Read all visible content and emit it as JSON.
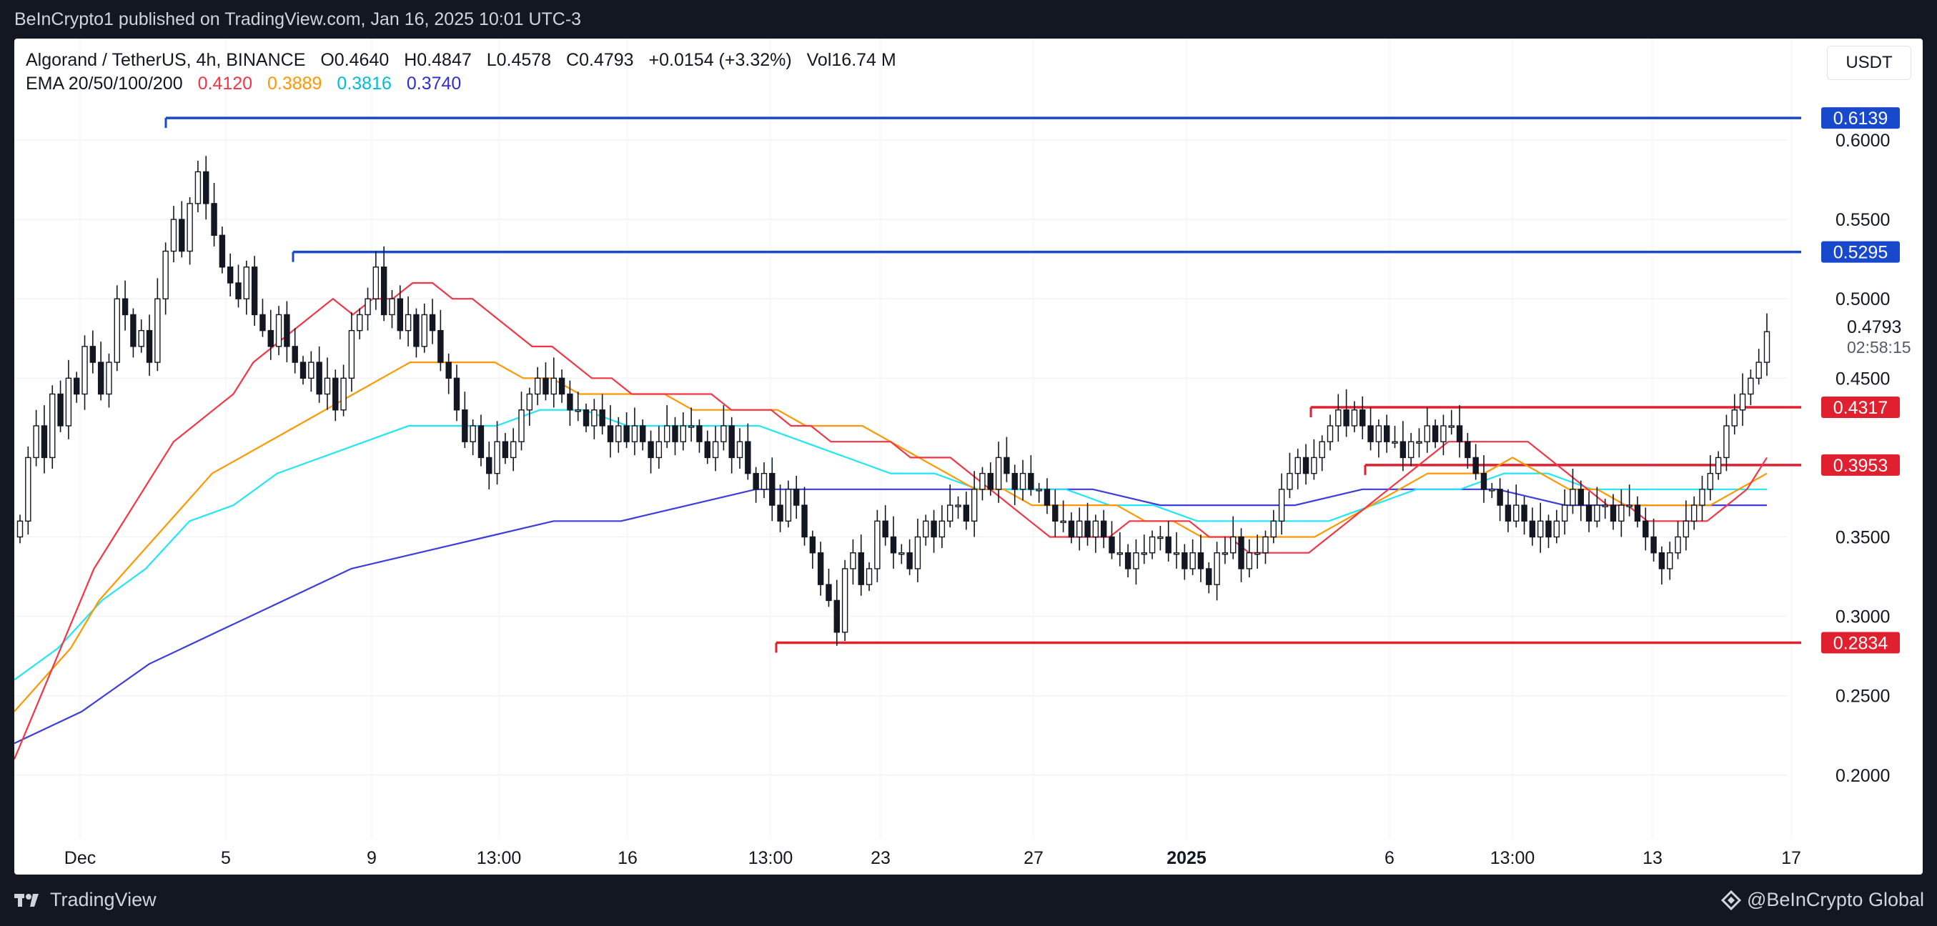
{
  "header": {
    "published": "BeInCrypto1 published on TradingView.com, Jan 16, 2025 10:01 UTC-3"
  },
  "legend": {
    "symbol": "Algorand / TetherUS, 4h, BINANCE",
    "open": "O0.4640",
    "high": "H0.4847",
    "low": "L0.4578",
    "close": "C0.4793",
    "change": "+0.0154 (+3.32%)",
    "volume": "Vol16.74 M",
    "ema_label": "EMA 20/50/100/200",
    "ema20": "0.4120",
    "ema50": "0.3889",
    "ema100": "0.3816",
    "ema200": "0.3740"
  },
  "currency_button": "USDT",
  "colors": {
    "up": "#ffffff",
    "down": "#131722",
    "ema20": "#f23645",
    "ema50": "#ff9800",
    "ema100": "#22e6f5",
    "ema200": "#3d3dde",
    "resistance": "#1848cc",
    "support": "#e0202e"
  },
  "chart_data": {
    "type": "candlestick",
    "pair": "ALGO/USDT",
    "timeframe": "4h",
    "y_ticks": [
      "0.6000",
      "0.5500",
      "0.5000",
      "0.4500",
      "0.3500",
      "0.3000",
      "0.2500",
      "0.2000"
    ],
    "y_tick_values": [
      0.6,
      0.55,
      0.5,
      0.45,
      0.35,
      0.3,
      0.25,
      0.2
    ],
    "x_ticks": [
      "Dec",
      "5",
      "9",
      "13:00",
      "16",
      "13:00",
      "23",
      "27",
      "2025",
      "6",
      "13:00",
      "13",
      "17"
    ],
    "last_price": "0.4793",
    "countdown": "02:58:15",
    "levels": [
      {
        "value": 0.6139,
        "label": "0.6139",
        "kind": "resistance"
      },
      {
        "value": 0.5295,
        "label": "0.5295",
        "kind": "resistance"
      },
      {
        "value": 0.4317,
        "label": "0.4317",
        "kind": "support"
      },
      {
        "value": 0.3953,
        "label": "0.3953",
        "kind": "support"
      },
      {
        "value": 0.2834,
        "label": "0.2834",
        "kind": "support"
      }
    ],
    "closes": [
      0.36,
      0.4,
      0.42,
      0.4,
      0.44,
      0.42,
      0.45,
      0.44,
      0.47,
      0.46,
      0.44,
      0.46,
      0.5,
      0.49,
      0.47,
      0.48,
      0.46,
      0.5,
      0.53,
      0.55,
      0.53,
      0.56,
      0.58,
      0.56,
      0.54,
      0.52,
      0.51,
      0.5,
      0.52,
      0.49,
      0.48,
      0.47,
      0.49,
      0.47,
      0.46,
      0.45,
      0.46,
      0.44,
      0.45,
      0.43,
      0.45,
      0.48,
      0.49,
      0.5,
      0.52,
      0.49,
      0.5,
      0.48,
      0.49,
      0.47,
      0.49,
      0.48,
      0.46,
      0.45,
      0.43,
      0.41,
      0.42,
      0.4,
      0.39,
      0.41,
      0.4,
      0.41,
      0.43,
      0.44,
      0.45,
      0.44,
      0.45,
      0.44,
      0.43,
      0.43,
      0.42,
      0.43,
      0.42,
      0.41,
      0.42,
      0.41,
      0.42,
      0.41,
      0.4,
      0.41,
      0.42,
      0.41,
      0.42,
      0.42,
      0.41,
      0.4,
      0.41,
      0.42,
      0.4,
      0.41,
      0.39,
      0.38,
      0.39,
      0.37,
      0.36,
      0.38,
      0.37,
      0.35,
      0.34,
      0.32,
      0.31,
      0.29,
      0.33,
      0.34,
      0.32,
      0.33,
      0.36,
      0.35,
      0.34,
      0.34,
      0.33,
      0.35,
      0.36,
      0.35,
      0.36,
      0.37,
      0.37,
      0.36,
      0.38,
      0.39,
      0.38,
      0.4,
      0.39,
      0.38,
      0.39,
      0.38,
      0.38,
      0.37,
      0.36,
      0.36,
      0.35,
      0.36,
      0.35,
      0.36,
      0.35,
      0.34,
      0.34,
      0.33,
      0.34,
      0.34,
      0.35,
      0.35,
      0.34,
      0.34,
      0.33,
      0.34,
      0.33,
      0.32,
      0.34,
      0.34,
      0.35,
      0.33,
      0.34,
      0.34,
      0.35,
      0.36,
      0.38,
      0.39,
      0.4,
      0.39,
      0.4,
      0.41,
      0.42,
      0.43,
      0.42,
      0.43,
      0.42,
      0.41,
      0.42,
      0.41,
      0.41,
      0.4,
      0.41,
      0.41,
      0.42,
      0.41,
      0.42,
      0.42,
      0.41,
      0.4,
      0.39,
      0.38,
      0.38,
      0.37,
      0.36,
      0.37,
      0.36,
      0.35,
      0.36,
      0.35,
      0.36,
      0.37,
      0.38,
      0.37,
      0.36,
      0.37,
      0.37,
      0.36,
      0.37,
      0.37,
      0.36,
      0.35,
      0.34,
      0.33,
      0.34,
      0.35,
      0.36,
      0.37,
      0.38,
      0.39,
      0.4,
      0.42,
      0.43,
      0.44,
      0.45,
      0.46,
      0.4793
    ],
    "ema20": [
      0.21,
      0.24,
      0.27,
      0.3,
      0.33,
      0.35,
      0.37,
      0.39,
      0.41,
      0.42,
      0.43,
      0.44,
      0.46,
      0.47,
      0.48,
      0.49,
      0.5,
      0.49,
      0.5,
      0.5,
      0.51,
      0.51,
      0.5,
      0.5,
      0.49,
      0.48,
      0.47,
      0.47,
      0.46,
      0.45,
      0.45,
      0.44,
      0.44,
      0.44,
      0.44,
      0.44,
      0.43,
      0.43,
      0.43,
      0.42,
      0.42,
      0.41,
      0.41,
      0.41,
      0.41,
      0.4,
      0.4,
      0.4,
      0.39,
      0.38,
      0.37,
      0.36,
      0.35,
      0.35,
      0.35,
      0.35,
      0.36,
      0.36,
      0.36,
      0.36,
      0.35,
      0.35,
      0.34,
      0.34,
      0.34,
      0.34,
      0.35,
      0.36,
      0.37,
      0.38,
      0.39,
      0.4,
      0.41,
      0.41,
      0.41,
      0.41,
      0.41,
      0.4,
      0.39,
      0.38,
      0.37,
      0.37,
      0.36,
      0.36,
      0.36,
      0.36,
      0.37,
      0.38,
      0.4
    ],
    "ema50": [
      0.24,
      0.26,
      0.28,
      0.31,
      0.33,
      0.35,
      0.37,
      0.39,
      0.4,
      0.41,
      0.42,
      0.43,
      0.44,
      0.45,
      0.46,
      0.46,
      0.46,
      0.46,
      0.45,
      0.45,
      0.44,
      0.44,
      0.44,
      0.44,
      0.43,
      0.43,
      0.43,
      0.43,
      0.42,
      0.42,
      0.42,
      0.41,
      0.4,
      0.39,
      0.38,
      0.38,
      0.37,
      0.37,
      0.37,
      0.37,
      0.36,
      0.36,
      0.35,
      0.35,
      0.35,
      0.35,
      0.35,
      0.36,
      0.37,
      0.38,
      0.39,
      0.39,
      0.39,
      0.4,
      0.39,
      0.38,
      0.38,
      0.37,
      0.37,
      0.37,
      0.37,
      0.38,
      0.39
    ],
    "ema100": [
      0.26,
      0.28,
      0.31,
      0.33,
      0.36,
      0.37,
      0.39,
      0.4,
      0.41,
      0.42,
      0.42,
      0.42,
      0.43,
      0.43,
      0.42,
      0.42,
      0.42,
      0.42,
      0.41,
      0.4,
      0.39,
      0.39,
      0.38,
      0.38,
      0.38,
      0.37,
      0.37,
      0.36,
      0.36,
      0.36,
      0.36,
      0.37,
      0.38,
      0.38,
      0.39,
      0.39,
      0.38,
      0.38,
      0.38,
      0.38,
      0.38
    ],
    "ema200": [
      0.22,
      0.24,
      0.27,
      0.29,
      0.31,
      0.33,
      0.34,
      0.35,
      0.36,
      0.36,
      0.37,
      0.38,
      0.38,
      0.38,
      0.38,
      0.38,
      0.38,
      0.37,
      0.37,
      0.37,
      0.38,
      0.38,
      0.38,
      0.37,
      0.37,
      0.37,
      0.37
    ]
  },
  "footer": {
    "brand": "TradingView",
    "watermark": "@BeInCrypto Global"
  }
}
